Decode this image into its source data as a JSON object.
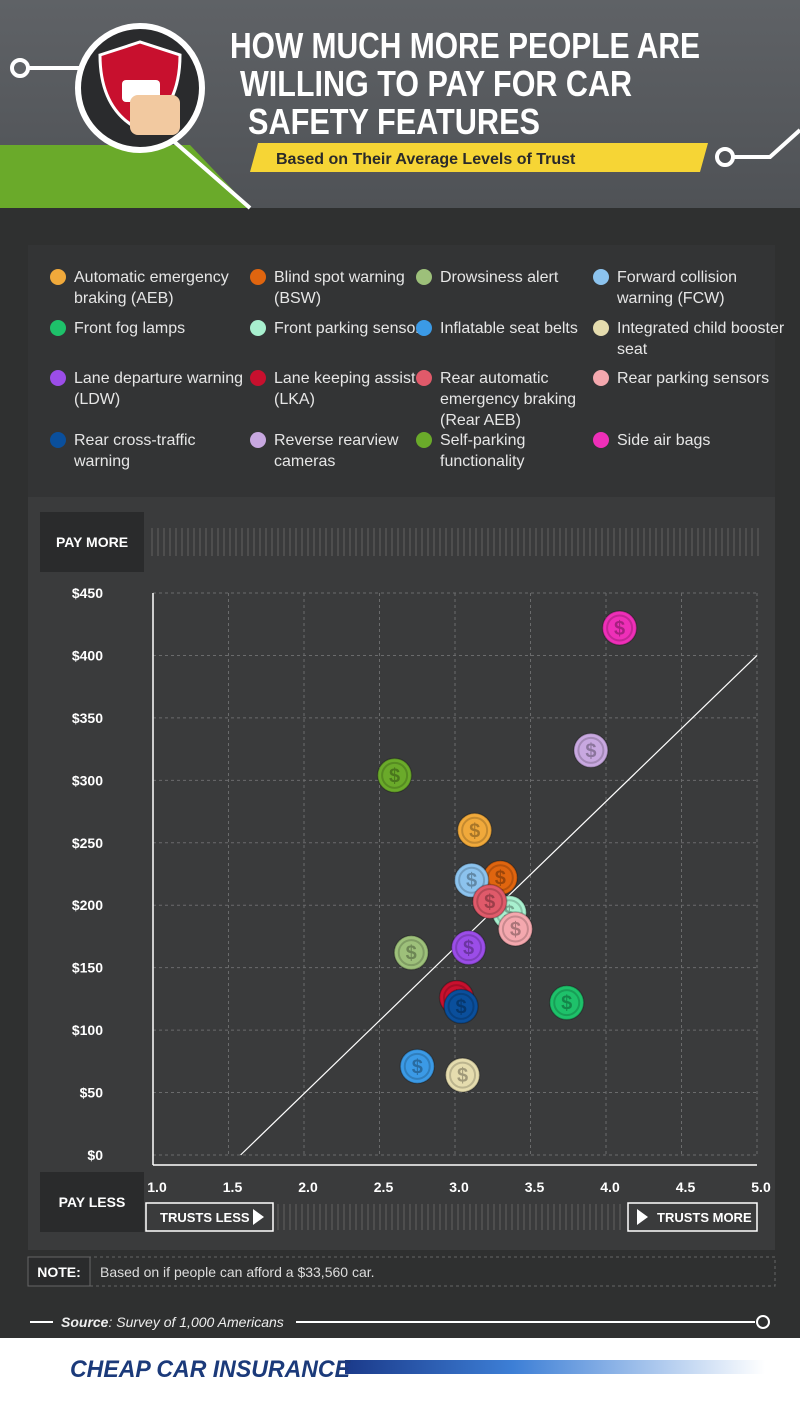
{
  "header": {
    "title": [
      "HOW MUCH MORE PEOPLE ARE",
      "WILLING TO PAY FOR CAR",
      "SAFETY FEATURES"
    ],
    "subtitle": "Based on Their Average Levels of Trust"
  },
  "chart_data": {
    "type": "scatter",
    "y_top_label": "PAY MORE",
    "y_bottom_label": "PAY LESS",
    "x_left_label": "TRUSTS LESS",
    "x_right_label": "TRUSTS MORE",
    "coin_symbol": "$",
    "xlim": [
      1,
      5
    ],
    "ylim": [
      0,
      450
    ],
    "xticks": [
      {
        "value": 1,
        "label": "1.0"
      },
      1.5,
      {
        "value": 2,
        "label": "2.0"
      },
      2.5,
      {
        "value": 3,
        "label": "3.0"
      },
      3.5,
      {
        "value": 4,
        "label": "4.0"
      },
      4.5,
      {
        "value": 5,
        "label": "5.0"
      }
    ],
    "yticks": [
      {
        "value": 0,
        "label": "$0"
      },
      {
        "value": 50,
        "label": "$50"
      },
      {
        "value": 100,
        "label": "$100"
      },
      {
        "value": 150,
        "label": "$150"
      },
      {
        "value": 200,
        "label": "$200"
      },
      {
        "value": 250,
        "label": "$250"
      },
      {
        "value": 300,
        "label": "$300"
      },
      {
        "value": 350,
        "label": "$350"
      },
      {
        "value": 400,
        "label": "$400"
      },
      {
        "value": 450,
        "label": "$450"
      }
    ],
    "grid": true,
    "reference_line": {
      "x": [
        1.58,
        5
      ],
      "values": [
        0,
        400
      ]
    },
    "series": [
      {
        "name": "Automatic emergency braking (AEB)",
        "color": "#f0a93b",
        "x": [
          3.13
        ],
        "values": [
          260
        ]
      },
      {
        "name": "Blind spot warning (BSW)",
        "color": "#e0650f",
        "x": [
          3.3
        ],
        "values": [
          222
        ]
      },
      {
        "name": "Drowsiness alert",
        "color": "#9dc07a",
        "x": [
          2.71
        ],
        "values": [
          162
        ]
      },
      {
        "name": "Forward collision warning (FCW)",
        "color": "#8cc3ee",
        "x": [
          3.11
        ],
        "values": [
          220
        ]
      },
      {
        "name": "Front fog lamps",
        "color": "#1ec16a",
        "x": [
          3.74
        ],
        "values": [
          122
        ]
      },
      {
        "name": "Front parking sensors",
        "color": "#a8f0cf",
        "x": [
          3.36
        ],
        "values": [
          194
        ]
      },
      {
        "name": "Inflatable seat belts",
        "color": "#3b9ae6",
        "x": [
          2.75
        ],
        "values": [
          71
        ]
      },
      {
        "name": "Integrated child booster seat",
        "color": "#e5dcae",
        "x": [
          3.05
        ],
        "values": [
          64
        ]
      },
      {
        "name": "Lane departure warning (LDW)",
        "color": "#9b4de8",
        "x": [
          3.09
        ],
        "values": [
          166
        ]
      },
      {
        "name": "Lane keeping assist (LKA)",
        "color": "#c8102e",
        "x": [
          3.01
        ],
        "values": [
          126
        ]
      },
      {
        "name": "Rear automatic emergency braking (Rear AEB)",
        "color": "#e05a6a",
        "x": [
          3.23
        ],
        "values": [
          203
        ]
      },
      {
        "name": "Rear parking sensors",
        "color": "#f4a8ae",
        "x": [
          3.4
        ],
        "values": [
          181
        ]
      },
      {
        "name": "Rear cross-traffic warning",
        "color": "#0a4f9c",
        "x": [
          3.04
        ],
        "values": [
          119
        ]
      },
      {
        "name": "Reverse rearview cameras",
        "color": "#c8a8e0",
        "x": [
          3.9
        ],
        "values": [
          324
        ]
      },
      {
        "name": "Self-parking functionality",
        "color": "#6aaa2a",
        "x": [
          2.6
        ],
        "values": [
          304
        ]
      },
      {
        "name": "Side air bags",
        "color": "#ee2fb8",
        "x": [
          4.09
        ],
        "values": [
          422
        ]
      }
    ]
  },
  "note": {
    "label": "NOTE:",
    "text": "Based on if people can afford a $33,560 car."
  },
  "source": {
    "label": "Source",
    "text": ": Survey of 1,000 Americans"
  },
  "footer": {
    "logo": "CHEAP CAR INSURANCE"
  }
}
